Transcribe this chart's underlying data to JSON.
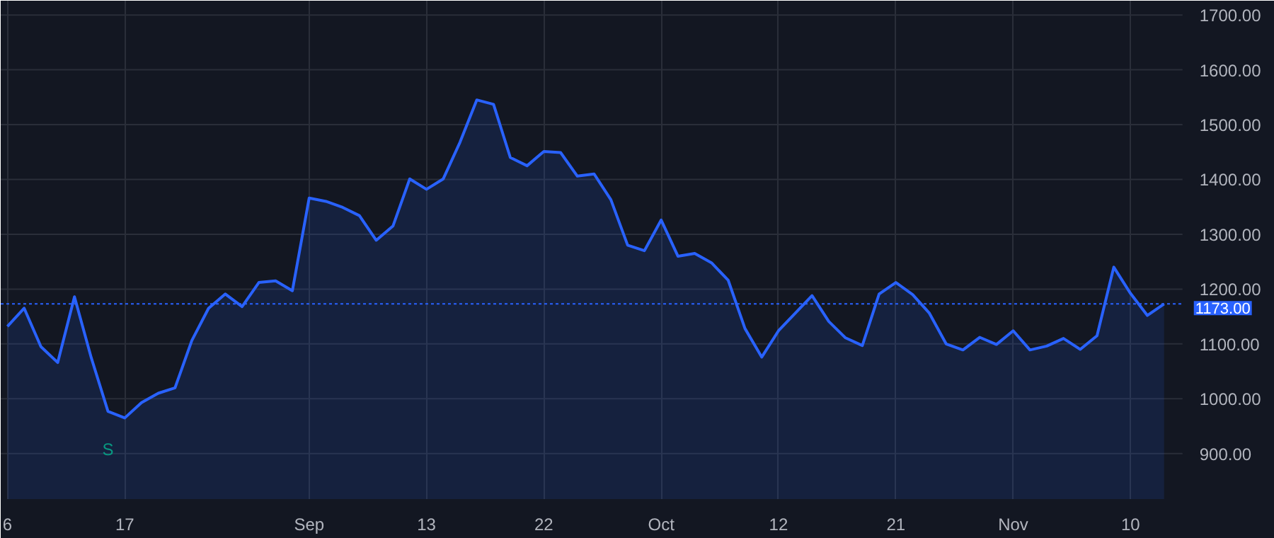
{
  "chart_data": {
    "type": "area",
    "categories": [
      "6",
      null,
      null,
      null,
      null,
      null,
      null,
      "17",
      null,
      null,
      null,
      null,
      null,
      null,
      null,
      null,
      null,
      null,
      "Sep",
      null,
      null,
      null,
      null,
      null,
      null,
      "13",
      null,
      null,
      null,
      null,
      null,
      null,
      "22",
      null,
      null,
      null,
      null,
      null,
      null,
      "Oct",
      null,
      null,
      null,
      null,
      null,
      null,
      "12",
      null,
      null,
      null,
      null,
      null,
      null,
      "21",
      null,
      null,
      null,
      null,
      null,
      null,
      "Nov",
      null,
      null,
      null,
      null,
      null,
      null,
      "10",
      null,
      null
    ],
    "series": [
      {
        "color": "#2962ff",
        "values": [
          1132,
          1165,
          1095,
          1066,
          1186,
          1075,
          977,
          965,
          993,
          1010,
          1020,
          1106,
          1165,
          1191,
          1168,
          1212,
          1215,
          1197,
          1366,
          1360,
          1349,
          1334,
          1289,
          1315,
          1401,
          1382,
          1401,
          1468,
          1545,
          1537,
          1440,
          1425,
          1451,
          1449,
          1406,
          1410,
          1363,
          1280,
          1270,
          1326,
          1260,
          1265,
          1248,
          1216,
          1128,
          1076,
          1124,
          1156,
          1188,
          1141,
          1111,
          1097,
          1191,
          1212,
          1190,
          1156,
          1100,
          1089,
          1112,
          1099,
          1124,
          1089,
          1096,
          1110,
          1090,
          1115,
          1240,
          1192,
          1152,
          1173
        ]
      }
    ],
    "ylim": [
      817,
      1726
    ],
    "yticks": [
      {
        "value": 900,
        "label": "900.00"
      },
      {
        "value": 1000,
        "label": "1000.00"
      },
      {
        "value": 1100,
        "label": "1100.00"
      },
      {
        "value": 1200,
        "label": "1200.00"
      },
      {
        "value": 1300,
        "label": "1300.00"
      },
      {
        "value": 1400,
        "label": "1400.00"
      },
      {
        "value": 1500,
        "label": "1500.00"
      },
      {
        "value": 1600,
        "label": "1600.00"
      },
      {
        "value": 1700,
        "label": "1700.00"
      }
    ],
    "ref_lines": [
      {
        "axis": "y",
        "value": 1173,
        "label": "1173.00",
        "color": "#2962ff",
        "line_style": "dotted"
      }
    ],
    "annotations": [
      {
        "text": "S",
        "y": 977
      }
    ],
    "grid": true
  }
}
